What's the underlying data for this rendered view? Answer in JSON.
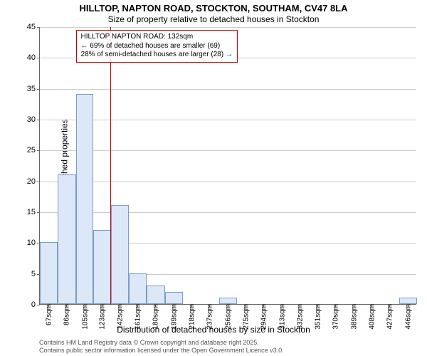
{
  "title_line1": "HILLTOP, NAPTON ROAD, STOCKTON, SOUTHAM, CV47 8LA",
  "title_line2": "Size of property relative to detached houses in Stockton",
  "y_axis_label": "Number of detached properties",
  "x_axis_label": "Distribution of detached houses by size in Stockton",
  "attribution_line1": "Contains HM Land Registry data © Crown copyright and database right 2025.",
  "attribution_line2": "Contains public sector information licensed under the Open Government Licence v3.0.",
  "callout": {
    "line1": "HILLTOP NAPTON ROAD: 132sqm",
    "line2": "← 69% of detached houses are smaller (69)",
    "line3": "28% of semi-detached houses are larger (28) →",
    "marker_x_value": 132
  },
  "chart": {
    "type": "histogram",
    "ylim": [
      0,
      45
    ],
    "ytick_step": 5,
    "x_domain": [
      58,
      456
    ],
    "background_color": "#ffffff",
    "grid_color": "#cccccc",
    "axis_color": "#666666",
    "bar_fill": "#dce7f7",
    "bar_border": "#7a9cc6",
    "callout_color": "#cc0000",
    "title_fontsize": 13,
    "subtitle_fontsize": 12,
    "axis_label_fontsize": 12,
    "tick_fontsize": 11,
    "x_tick_values": [
      67,
      86,
      105,
      123,
      142,
      161,
      180,
      199,
      218,
      237,
      256,
      275,
      294,
      313,
      332,
      351,
      370,
      389,
      408,
      427,
      446
    ],
    "x_tick_unit": "sqm",
    "bars": [
      {
        "x_start": 58,
        "x_end": 77,
        "count": 10
      },
      {
        "x_start": 77,
        "x_end": 96,
        "count": 21
      },
      {
        "x_start": 96,
        "x_end": 114,
        "count": 34
      },
      {
        "x_start": 114,
        "x_end": 133,
        "count": 12
      },
      {
        "x_start": 133,
        "x_end": 152,
        "count": 16
      },
      {
        "x_start": 152,
        "x_end": 171,
        "count": 5
      },
      {
        "x_start": 171,
        "x_end": 190,
        "count": 3
      },
      {
        "x_start": 190,
        "x_end": 209,
        "count": 2
      },
      {
        "x_start": 247,
        "x_end": 266,
        "count": 1
      },
      {
        "x_start": 437,
        "x_end": 456,
        "count": 1
      }
    ]
  }
}
